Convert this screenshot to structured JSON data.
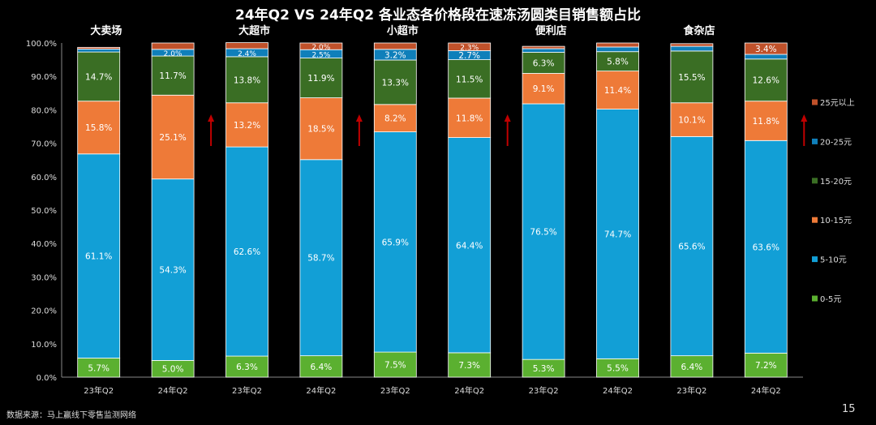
{
  "page": {
    "title": "24年Q2 VS 24年Q2 各业态各价格段在速冻汤圆类目销售额占比",
    "source": "数据来源：马上赢线下零售监测网络",
    "page_number": "15"
  },
  "chart_data": {
    "type": "bar",
    "stacked": true,
    "title": "24年Q2 VS 24年Q2 各业态各价格段在速冻汤圆类目销售额占比",
    "ylim": [
      0,
      100
    ],
    "y_ticks": [
      "0.0%",
      "10.0%",
      "20.0%",
      "30.0%",
      "40.0%",
      "50.0%",
      "60.0%",
      "70.0%",
      "80.0%",
      "90.0%",
      "100.0%"
    ],
    "groups": [
      "大卖场",
      "大超市",
      "小超市",
      "便利店",
      "食杂店"
    ],
    "categories": [
      "23年Q2",
      "24年Q2",
      "23年Q2",
      "24年Q2",
      "23年Q2",
      "24年Q2",
      "23年Q2",
      "24年Q2",
      "23年Q2",
      "24年Q2"
    ],
    "series": [
      {
        "name": "0-5元",
        "color": "#5BB030",
        "values": [
          5.7,
          5.0,
          6.3,
          6.4,
          7.5,
          7.3,
          5.3,
          5.5,
          6.4,
          7.2
        ]
      },
      {
        "name": "5-10元",
        "color": "#129FD6",
        "values": [
          61.1,
          54.3,
          62.6,
          58.7,
          65.9,
          64.4,
          76.5,
          74.7,
          65.6,
          63.6
        ]
      },
      {
        "name": "10-15元",
        "color": "#EE7A38",
        "values": [
          15.8,
          25.1,
          13.2,
          18.5,
          8.2,
          11.8,
          9.1,
          11.4,
          10.1,
          11.8
        ]
      },
      {
        "name": "15-20元",
        "color": "#3A6E24",
        "values": [
          14.7,
          11.7,
          13.8,
          11.9,
          13.3,
          11.5,
          6.3,
          5.8,
          15.5,
          12.6
        ]
      },
      {
        "name": "20-25元",
        "color": "#0F7FBA",
        "values": [
          0.9,
          2.0,
          2.4,
          2.5,
          3.2,
          2.7,
          1.1,
          1.4,
          1.4,
          1.4
        ]
      },
      {
        "name": "25元以上",
        "color": "#C0512A",
        "values": [
          0.5,
          1.9,
          1.8,
          2.0,
          1.9,
          2.3,
          0.7,
          1.2,
          0.8,
          3.4
        ]
      }
    ],
    "legend_order": [
      "25元以上",
      "20-25元",
      "15-20元",
      "10-15元",
      "5-10元",
      "0-5元"
    ],
    "legend_position": "right",
    "up_arrows_after_bars": [
      1,
      3,
      5,
      9
    ],
    "arrow_color": "#C00000",
    "grid": false
  }
}
